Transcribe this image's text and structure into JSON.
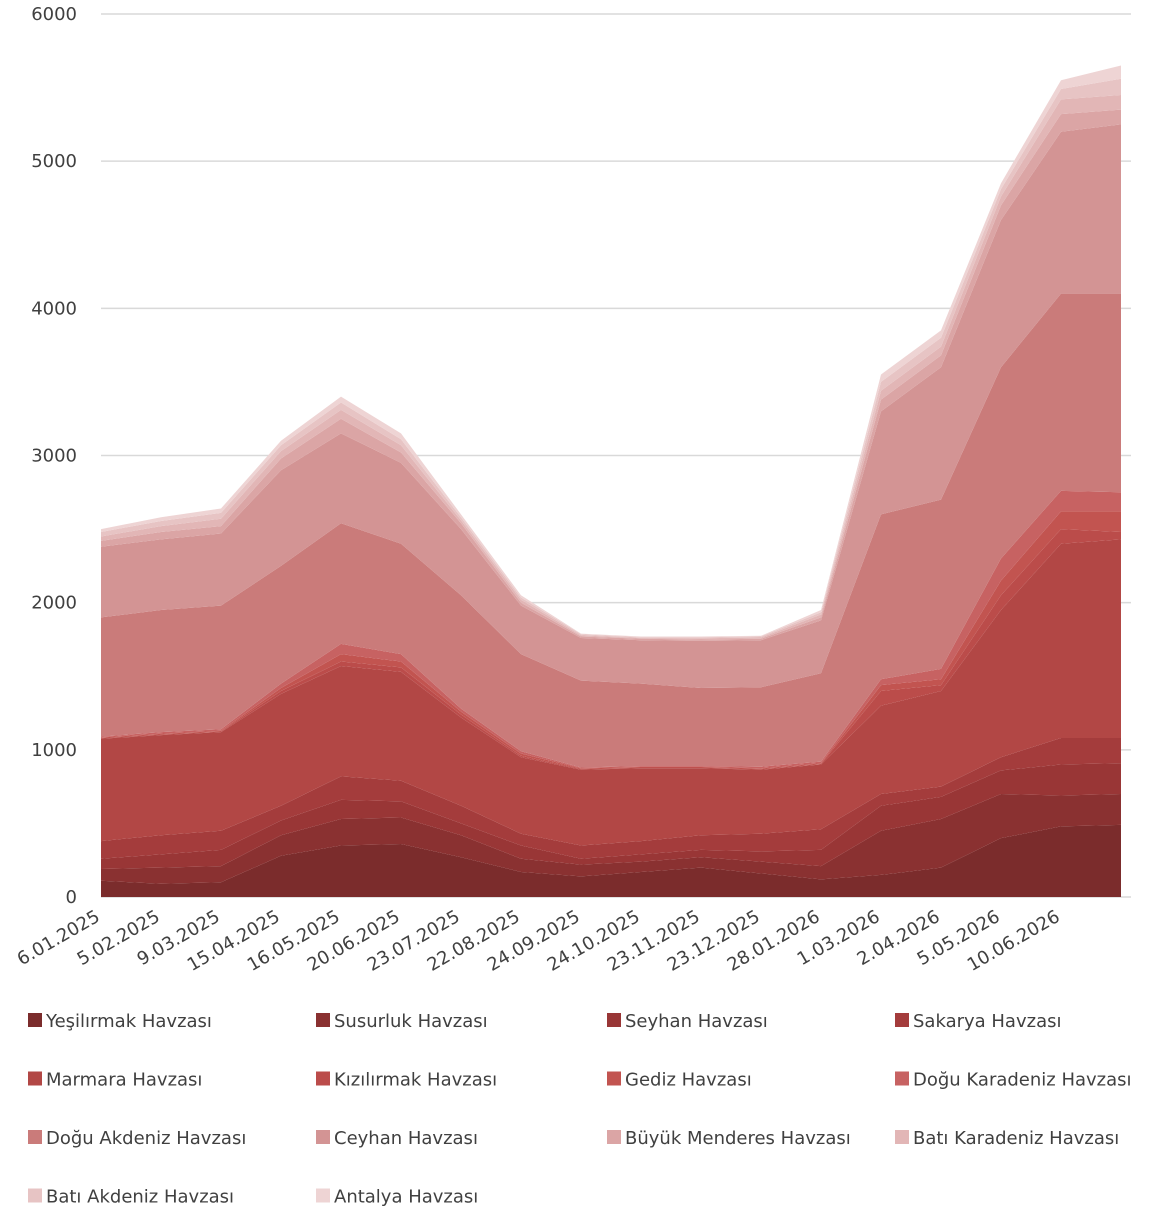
{
  "chart_data": {
    "type": "stacked_area",
    "categories": [
      "6.01.2025",
      "5.02.2025",
      "9.03.2025",
      "15.04.2025",
      "16.05.2025",
      "20.06.2025",
      "23.07.2025",
      "22.08.2025",
      "24.09.2025",
      "24.10.2025",
      "23.11.2025",
      "23.12.2025",
      "28.01.2026",
      "1.03.2026",
      "2.04.2026",
      "5.05.2026",
      "10.06.2026",
      null
    ],
    "ylim": [
      0,
      6000
    ],
    "yticks": [
      0,
      1000,
      2000,
      3000,
      4000,
      5000,
      6000
    ],
    "grid": true,
    "legend": "bottom",
    "series": [
      {
        "name": "Yeşilırmak Havzası",
        "color": "#7b2c2c",
        "values": [
          110,
          90,
          100,
          280,
          350,
          360,
          270,
          170,
          140,
          170,
          200,
          160,
          120,
          150,
          200,
          400,
          480,
          490
        ]
      },
      {
        "name": "Susurluk Havzası",
        "color": "#8a3131",
        "values": [
          80,
          110,
          110,
          140,
          180,
          180,
          150,
          90,
          80,
          70,
          70,
          80,
          90,
          300,
          330,
          300,
          210,
          210
        ]
      },
      {
        "name": "Seyhan Havzası",
        "color": "#993636",
        "values": [
          70,
          90,
          110,
          100,
          130,
          110,
          80,
          90,
          40,
          50,
          50,
          70,
          110,
          170,
          150,
          160,
          210,
          210
        ]
      },
      {
        "name": "Sakarya Havzası",
        "color": "#a43c3c",
        "values": [
          120,
          130,
          130,
          100,
          160,
          140,
          120,
          80,
          90,
          90,
          100,
          120,
          140,
          80,
          70,
          90,
          180,
          170
        ]
      },
      {
        "name": "Marmara Havzası",
        "color": "#b24745",
        "values": [
          695,
          680,
          670,
          760,
          750,
          740,
          600,
          520,
          515,
          495,
          455,
          435,
          440,
          600,
          650,
          1000,
          1320,
          1350
        ]
      },
      {
        "name": "Kızılırmak Havzası",
        "color": "#bb4c4a",
        "values": [
          5,
          5,
          5,
          20,
          30,
          30,
          20,
          10,
          5,
          5,
          5,
          5,
          5,
          100,
          40,
          100,
          100,
          50
        ]
      },
      {
        "name": "Gediz Havzası",
        "color": "#c25450",
        "values": [
          5,
          5,
          5,
          20,
          50,
          40,
          20,
          15,
          5,
          5,
          5,
          5,
          5,
          40,
          40,
          100,
          120,
          140
        ]
      },
      {
        "name": "Doğu Karadeniz Havzası",
        "color": "#c76262",
        "values": [
          5,
          10,
          10,
          30,
          70,
          50,
          20,
          15,
          5,
          5,
          5,
          10,
          10,
          40,
          70,
          150,
          140,
          130
        ]
      },
      {
        "name": "Doğu Akdeniz Havzası",
        "color": "#ca7b7a",
        "values": [
          810,
          830,
          840,
          800,
          820,
          750,
          770,
          660,
          590,
          560,
          530,
          540,
          600,
          1120,
          1150,
          1300,
          1340,
          1350
        ]
      },
      {
        "name": "Ceyhan Havzası",
        "color": "#d39494",
        "values": [
          480,
          480,
          490,
          650,
          610,
          550,
          450,
          330,
          290,
          295,
          320,
          320,
          360,
          700,
          900,
          1000,
          1100,
          1150
        ]
      },
      {
        "name": "Büyük Menderes Havzası",
        "color": "#dba5a5",
        "values": [
          40,
          50,
          50,
          80,
          100,
          70,
          40,
          20,
          10,
          10,
          10,
          10,
          20,
          80,
          80,
          100,
          120,
          100
        ]
      },
      {
        "name": "Batı Karadeniz Havzası",
        "color": "#e2b6b6",
        "values": [
          30,
          40,
          50,
          50,
          60,
          50,
          20,
          20,
          8,
          5,
          8,
          8,
          20,
          60,
          60,
          60,
          100,
          100
        ]
      },
      {
        "name": "Batı Akdeniz Havzası",
        "color": "#e7c4c4",
        "values": [
          30,
          35,
          40,
          40,
          50,
          40,
          20,
          15,
          7,
          5,
          7,
          7,
          15,
          60,
          60,
          50,
          70,
          110
        ]
      },
      {
        "name": "Antalya Havzası",
        "color": "#eed4d4",
        "values": [
          20,
          25,
          30,
          30,
          40,
          40,
          20,
          15,
          5,
          5,
          5,
          5,
          15,
          50,
          50,
          40,
          60,
          90
        ]
      }
    ]
  }
}
